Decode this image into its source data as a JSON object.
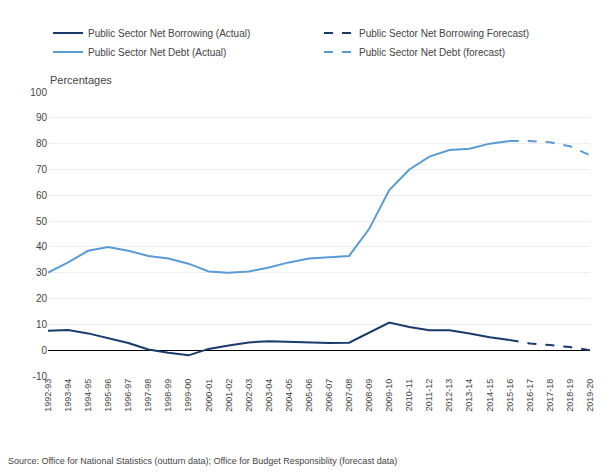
{
  "chart_data": {
    "type": "line",
    "ylabel": "Percentages",
    "source": "Source: Office for National Statistics (outturn data); Office for Budget Responsiblity (forecast data)",
    "categories": [
      "1992-93",
      "1993-94",
      "1994-95",
      "1995-96",
      "1996-97",
      "1997-98",
      "1998-99",
      "1999-00",
      "2000-01",
      "2001-02",
      "2002-03",
      "2003-04",
      "2004-05",
      "2005-06",
      "2006-07",
      "2007-08",
      "2008-09",
      "2009-10",
      "2010-11",
      "2011-12",
      "2012-13",
      "2013-14",
      "2014-15",
      "2015-16",
      "2016-17",
      "2017-18",
      "2018-19",
      "2019-20"
    ],
    "series": [
      {
        "name": "Public Sector Net Borrowing (Actual)",
        "color": "#1a3a6b",
        "line_style": "solid",
        "values": [
          7.5,
          7.8,
          6.5,
          4.5,
          2.8,
          0.3,
          -1.0,
          -2.0,
          0.5,
          1.8,
          3.0,
          3.5,
          3.3,
          3.0,
          2.8,
          2.9,
          6.9,
          10.7,
          9.0,
          7.7,
          7.7,
          6.5,
          5.0,
          3.9,
          null,
          null,
          null,
          null
        ]
      },
      {
        "name": "Public Sector Net Borrowing Forecast)",
        "color": "#1a3a6b",
        "line_style": "dashed",
        "values": [
          null,
          null,
          null,
          null,
          null,
          null,
          null,
          null,
          null,
          null,
          null,
          null,
          null,
          null,
          null,
          null,
          null,
          null,
          null,
          null,
          null,
          null,
          null,
          3.9,
          2.6,
          2.0,
          1.2,
          0.0
        ]
      },
      {
        "name": "Public Sector Net Debt (Actual)",
        "color": "#5b9bd5",
        "line_style": "solid",
        "values": [
          30.0,
          34.0,
          38.5,
          40.0,
          38.5,
          36.5,
          35.5,
          33.5,
          30.5,
          30.0,
          30.5,
          32.0,
          34.0,
          35.5,
          36.0,
          36.5,
          47.0,
          62.0,
          70.0,
          75.0,
          77.5,
          78.0,
          80.0,
          81.0,
          null,
          null,
          null,
          null
        ]
      },
      {
        "name": "Public Sector Net Debt (forecast)",
        "color": "#5b9bd5",
        "line_style": "dashed",
        "values": [
          null,
          null,
          null,
          null,
          null,
          null,
          null,
          null,
          null,
          null,
          null,
          null,
          null,
          null,
          null,
          null,
          null,
          null,
          null,
          null,
          null,
          null,
          null,
          81.0,
          81.0,
          80.5,
          79.0,
          75.5
        ]
      }
    ],
    "ylim": [
      -10,
      100
    ],
    "yticks": [
      -10,
      0,
      10,
      20,
      30,
      40,
      50,
      60,
      70,
      80,
      90,
      100
    ],
    "grid": true,
    "legend": "top"
  }
}
